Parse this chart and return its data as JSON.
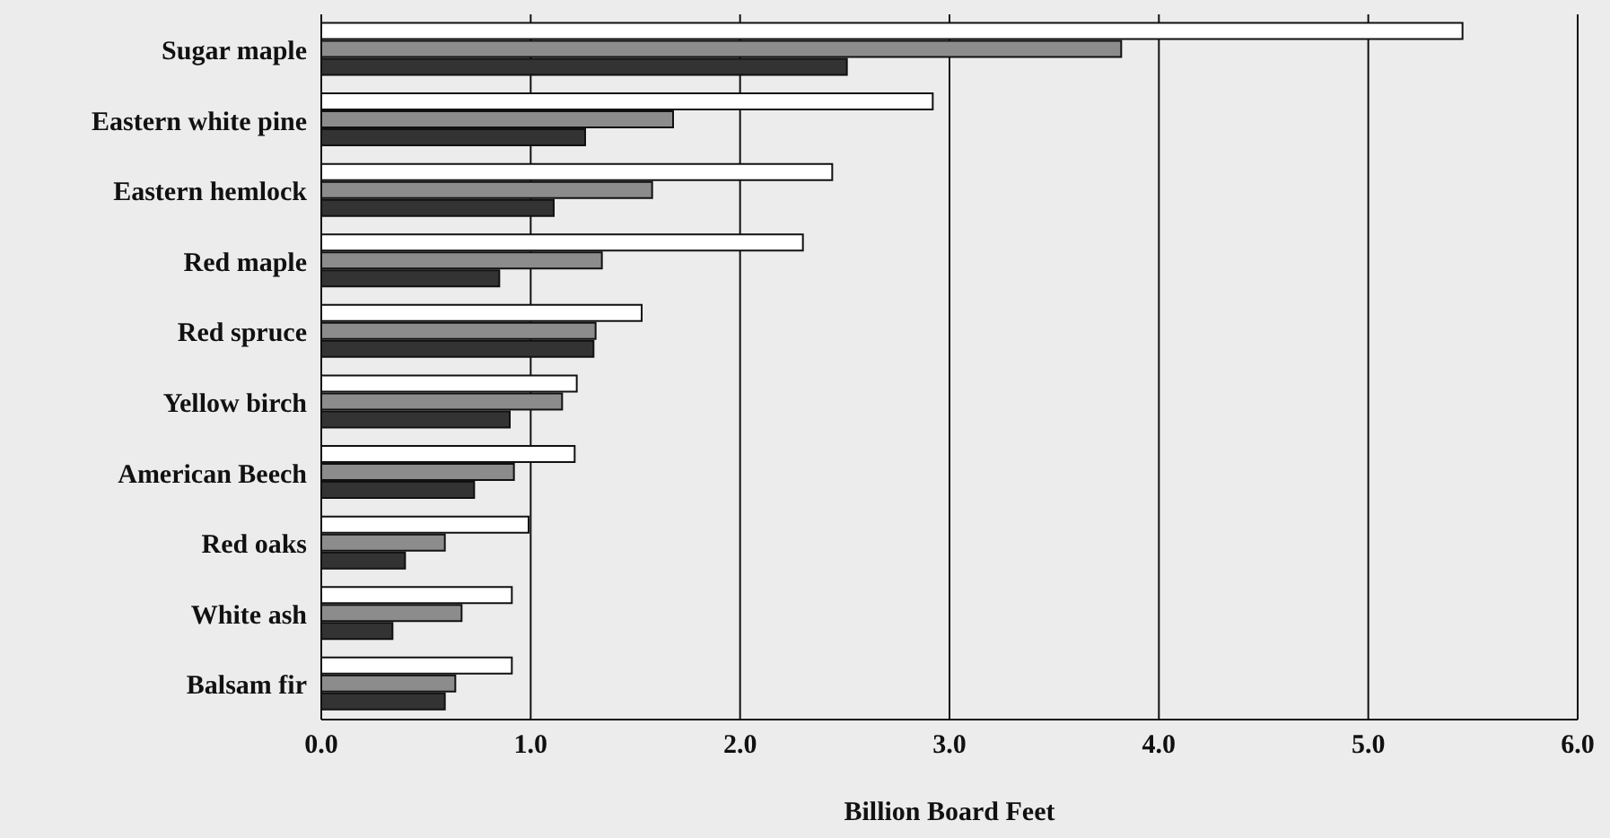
{
  "chart_data": {
    "type": "bar",
    "orientation": "horizontal",
    "xlabel": "Billion Board Feet",
    "categories": [
      "Sugar maple",
      "Eastern white pine",
      "Eastern hemlock",
      "Red maple",
      "Red spruce",
      "Yellow birch",
      "American Beech",
      "Red oaks",
      "White ash",
      "Balsam fir"
    ],
    "series": [
      {
        "color": "#ffffff",
        "values": [
          5.45,
          2.92,
          2.44,
          2.3,
          1.53,
          1.22,
          1.21,
          0.99,
          0.91,
          0.91
        ]
      },
      {
        "color": "#8c8c8c",
        "values": [
          3.82,
          1.68,
          1.58,
          1.34,
          1.31,
          1.15,
          0.92,
          0.59,
          0.67,
          0.64
        ]
      },
      {
        "color": "#333333",
        "values": [
          2.51,
          1.26,
          1.11,
          0.85,
          1.3,
          0.9,
          0.73,
          0.4,
          0.34,
          0.59
        ]
      }
    ],
    "xlim": [
      0,
      6
    ],
    "xticks": [
      {
        "value": 0,
        "label": "0.0"
      },
      {
        "value": 1,
        "label": "1.0"
      },
      {
        "value": 2,
        "label": "2.0"
      },
      {
        "value": 3,
        "label": "3.0"
      },
      {
        "value": 4,
        "label": "4.0"
      },
      {
        "value": 5,
        "label": "5.0"
      },
      {
        "value": 6,
        "label": "6.0"
      }
    ],
    "grid": "x",
    "legend": false
  }
}
